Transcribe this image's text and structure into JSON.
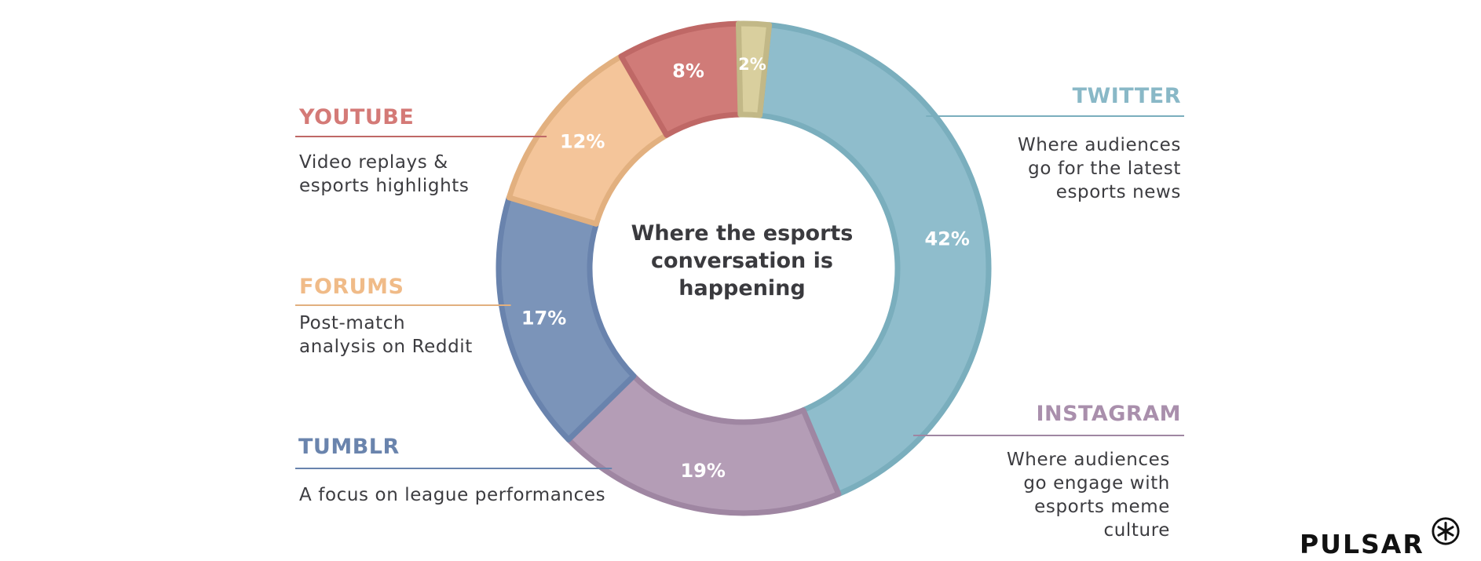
{
  "chart_data": {
    "type": "pie",
    "title": "Where the esports conversation is happening",
    "slices": [
      {
        "label": "TWITTER",
        "value": 42,
        "display": "42%",
        "color": "#8fbdcc",
        "border": "#7aaebd",
        "description": [
          "Where audiences",
          "go for the latest",
          "esports news"
        ]
      },
      {
        "label": "INSTAGRAM",
        "value": 19,
        "display": "19%",
        "color": "#b49db6",
        "border": "#9f86a2",
        "description": [
          "Where audiences",
          "go engage with",
          "esports meme",
          "culture"
        ]
      },
      {
        "label": "TUMBLR",
        "value": 17,
        "display": "17%",
        "color": "#7b94b9",
        "border": "#6983ad",
        "description": [
          "A focus on league performances"
        ]
      },
      {
        "label": "FORUMS",
        "value": 12,
        "display": "12%",
        "color": "#f4c59a",
        "border": "#e2b07f",
        "description": [
          "Post-match",
          "analysis on Reddit"
        ]
      },
      {
        "label": "YOUTUBE",
        "value": 8,
        "display": "8%",
        "color": "#d07b78",
        "border": "#bf6866",
        "description": [
          "Video replays &",
          "esports highlights"
        ]
      },
      {
        "label": "",
        "value": 2,
        "display": "2%",
        "color": "#d9cf9e",
        "border": "#c2b887",
        "description": []
      }
    ]
  },
  "brand": {
    "name": "PULSAR",
    "icon": "asterisk-circle-icon"
  }
}
